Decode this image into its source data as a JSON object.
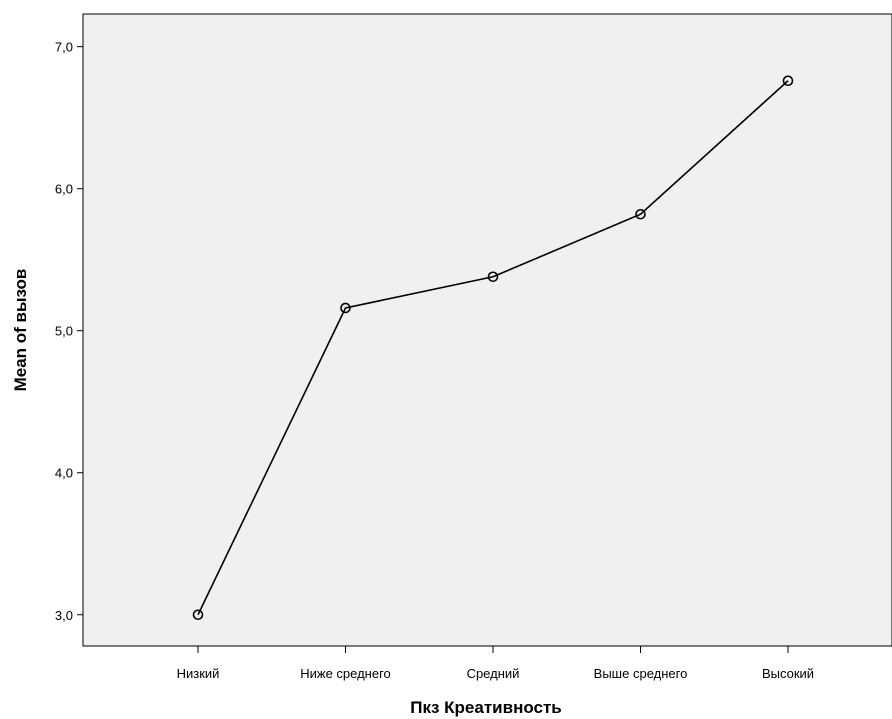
{
  "chart_data": {
    "type": "line",
    "title": "",
    "xlabel": "Пкз Креативность",
    "ylabel": "Mean of вызов",
    "categories": [
      "Низкий",
      "Ниже среднего",
      "Средний",
      "Выше среднего",
      "Высокий"
    ],
    "series": [
      {
        "values": [
          3.0,
          5.16,
          5.38,
          5.82,
          6.76
        ]
      }
    ],
    "ylim": [
      2.78,
      7.23
    ],
    "yticks": [
      3.0,
      4.0,
      5.0,
      6.0,
      7.0
    ],
    "ytick_labels": [
      "3,0",
      "4,0",
      "5,0",
      "6,0",
      "7,0"
    ],
    "grid": false,
    "legend": "none",
    "colors": {
      "plot_background": "#f0f0f0",
      "line": "#000000",
      "frame": "#000000"
    }
  }
}
